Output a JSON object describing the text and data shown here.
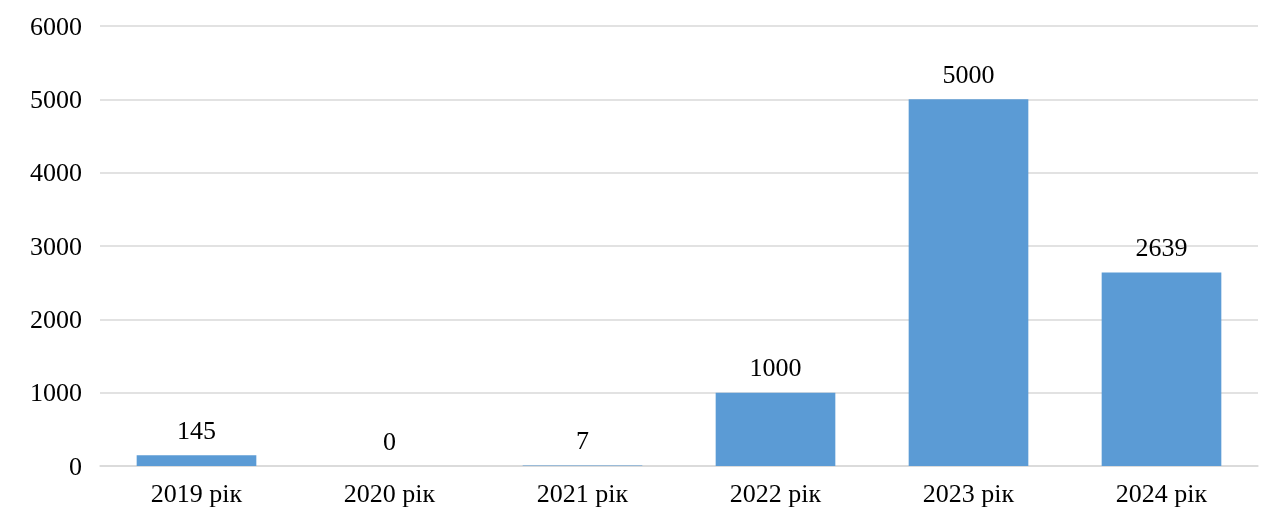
{
  "chart_data": {
    "type": "bar",
    "categories": [
      "2019 рік",
      "2020 рік",
      "2021 рік",
      "2022 рік",
      "2023 рік",
      "2024 рік"
    ],
    "values": [
      145,
      0,
      7,
      1000,
      5000,
      2639
    ],
    "color": "#5b9bd5",
    "ylim": [
      0,
      6000
    ],
    "yticks": [
      0,
      1000,
      2000,
      3000,
      4000,
      5000,
      6000
    ],
    "grid": "y",
    "data_labels": true
  }
}
